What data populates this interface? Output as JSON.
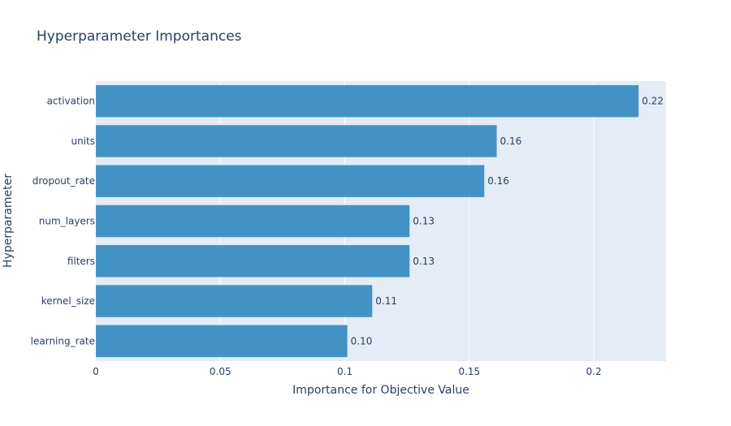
{
  "chart_data": {
    "type": "bar",
    "orientation": "horizontal",
    "title": "Hyperparameter Importances",
    "xlabel": "Importance for Objective Value",
    "ylabel": "Hyperparameter",
    "categories": [
      "learning_rate",
      "kernel_size",
      "filters",
      "num_layers",
      "dropout_rate",
      "units",
      "activation"
    ],
    "values": [
      0.101,
      0.111,
      0.126,
      0.126,
      0.156,
      0.161,
      0.218
    ],
    "value_labels": [
      "0.10",
      "0.11",
      "0.13",
      "0.13",
      "0.16",
      "0.16",
      "0.22"
    ],
    "xlim": [
      0,
      0.229
    ],
    "xticks": [
      0,
      0.05,
      0.1,
      0.15,
      0.2
    ],
    "xtick_labels": [
      "0",
      "0.05",
      "0.1",
      "0.15",
      "0.2"
    ],
    "grid": true,
    "colors": {
      "bar": "#4292c6",
      "plot_background": "#e5ecf6",
      "grid": "#ffffff",
      "text": "#2a3f5f"
    }
  }
}
